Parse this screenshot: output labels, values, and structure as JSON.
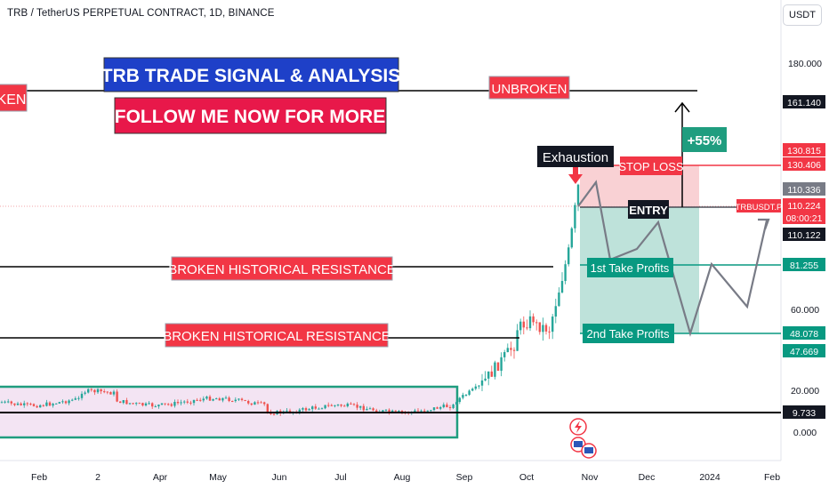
{
  "header": {
    "symbol_line": "TRB / TetherUS PERPETUAL CONTRACT, 1D, BINANCE",
    "currency": "USDT"
  },
  "colors": {
    "bull": "#26a69a",
    "bear": "#ef5350",
    "banner_blue": "#1e40c8",
    "banner_red": "#e8184a",
    "label_red": "#f23645",
    "label_green": "#089981",
    "hline": "#000000"
  },
  "chart_data": {
    "type": "candlestick",
    "title": "TRB / TetherUS PERPETUAL CONTRACT, 1D, BINANCE",
    "xlabel": "",
    "ylabel": "",
    "y_scale": "log",
    "price_ticks": [
      "180.000",
      "60.000",
      "20.000",
      "0.000"
    ],
    "time_ticks": [
      "Feb",
      "2",
      "Apr",
      "May",
      "Jun",
      "Jul",
      "Aug",
      "Sep",
      "Oct",
      "Nov",
      "Dec",
      "2024",
      "Feb"
    ],
    "price_badges": [
      {
        "value": "161.140",
        "style": "dark"
      },
      {
        "value": "130.815",
        "style": "red"
      },
      {
        "value": "130.406",
        "style": "red"
      },
      {
        "value": "110.336",
        "style": "grey"
      },
      {
        "value": "110.224",
        "style": "red"
      },
      {
        "value": "08:00:21",
        "style": "red"
      },
      {
        "value": "TRBUSDT.P",
        "style": "red-outline"
      },
      {
        "value": "110.122",
        "style": "dark"
      },
      {
        "value": "81.255",
        "style": "green"
      },
      {
        "value": "48.078",
        "style": "green"
      },
      {
        "value": "47.669",
        "style": "green"
      },
      {
        "value": "9.733",
        "style": "dark"
      }
    ],
    "annotations": {
      "banner_title": "TRB TRADE SIGNAL & ANALYSIS",
      "banner_follow": "FOLLOW ME NOW FOR MORE",
      "left_cut_label": "KEN",
      "unbroken": "UNBROKEN",
      "broken_1": "BROKEN HISTORICAL RESISTANCE",
      "broken_2": "BROKEN HISTORICAL RESISTANCE",
      "exhaustion": "Exhaustion",
      "stop_loss": "STOP LOSS",
      "entry": "ENTRY",
      "tp1": "1st Take Profits",
      "tp2": "2nd Take Profits",
      "gain": "+55%"
    },
    "trade_levels": {
      "unbroken": 161.14,
      "stop_loss": 130.815,
      "entry": 110.224,
      "tp1": 81.255,
      "tp2": 48.078,
      "support": 9.733
    }
  }
}
